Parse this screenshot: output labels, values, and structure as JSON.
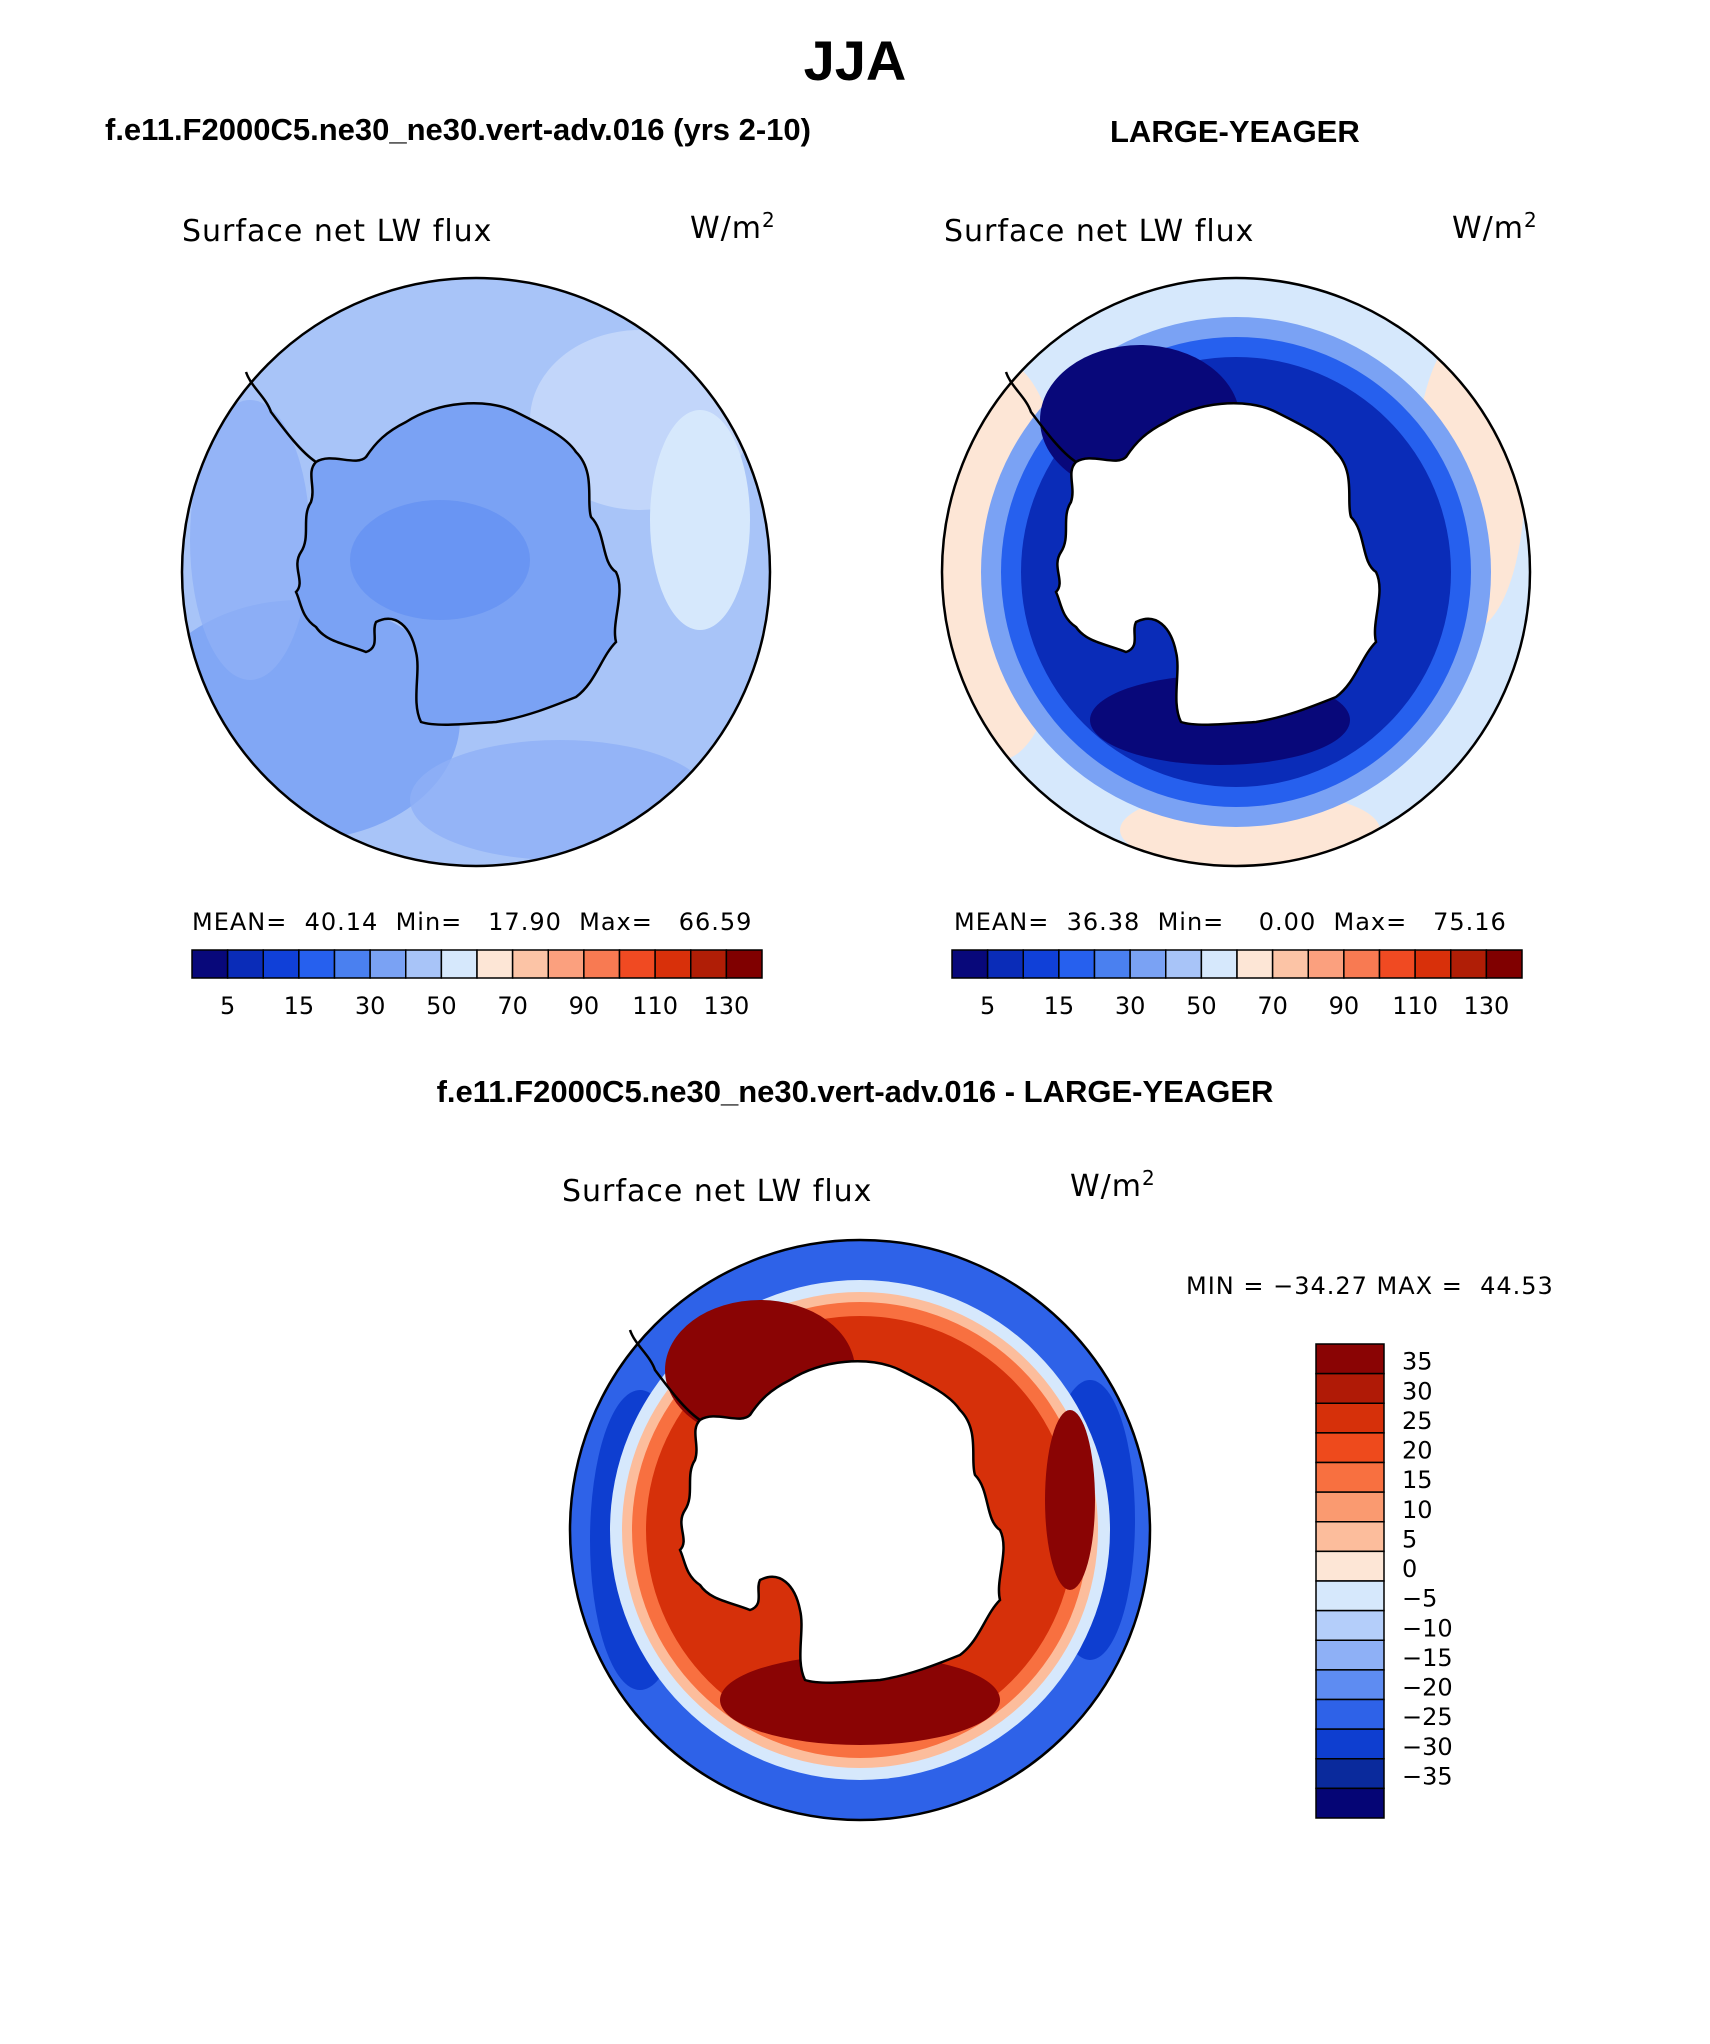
{
  "header": {
    "season": "JJA",
    "case_left": "f.e11.F2000C5.ne30_ne30.vert-adv.016 (yrs 2-10)",
    "case_right": "LARGE-YEAGER",
    "diff_title": "f.e11.F2000C5.ne30_ne30.vert-adv.016 - LARGE-YEAGER"
  },
  "panels": {
    "left": {
      "variable": "Surface net LW flux",
      "units": "W/m",
      "units_sup": "2",
      "stats": "MEAN=  40.14  Min=   17.90  Max=   66.59"
    },
    "right": {
      "variable": "Surface net LW flux",
      "units": "W/m",
      "units_sup": "2",
      "stats": "MEAN=  36.38  Min=    0.00  Max=   75.16"
    },
    "diff": {
      "variable": "Surface net LW flux",
      "units": "W/m",
      "units_sup": "2",
      "stats": "MIN = −34.27 MAX =  44.53"
    }
  },
  "colorbars": {
    "abs": {
      "labels": [
        "5",
        "15",
        "30",
        "50",
        "70",
        "90",
        "110",
        "130"
      ],
      "colors": [
        "#08087a",
        "#0a2cb8",
        "#1040d8",
        "#2660ee",
        "#4a80f0",
        "#7aa2f4",
        "#a8c4f8",
        "#d6e8fc",
        "#fde6d6",
        "#fcc4a6",
        "#fba07e",
        "#f87a52",
        "#f04a22",
        "#d8300a",
        "#b01e06",
        "#800000"
      ]
    },
    "diff": {
      "labels": [
        "35",
        "30",
        "25",
        "20",
        "15",
        "10",
        "5",
        "0",
        "−5",
        "−10",
        "−15",
        "−20",
        "−25",
        "−30",
        "−35"
      ],
      "colors": [
        "#8a0404",
        "#b01a06",
        "#d6300a",
        "#ee4a1c",
        "#f87040",
        "#fa9a70",
        "#fcbd9c",
        "#fde6d6",
        "#d6e8fc",
        "#b4cefa",
        "#8eb0f6",
        "#5e8cf2",
        "#2e62e8",
        "#0e3ed0",
        "#0a2a9c",
        "#050575"
      ]
    }
  },
  "chart_data": [
    {
      "type": "map",
      "title": "Surface net LW flux",
      "subtitle": "f.e11.F2000C5.ne30_ne30.vert-adv.016 (yrs 2-10)",
      "units": "W/m2",
      "projection": "south-polar-stereographic",
      "mean": 40.14,
      "min": 17.9,
      "max": 66.59,
      "contour_levels": [
        5,
        10,
        15,
        20,
        30,
        40,
        50,
        60,
        70,
        80,
        90,
        100,
        110,
        120,
        130
      ]
    },
    {
      "type": "map",
      "title": "Surface net LW flux",
      "subtitle": "LARGE-YEAGER",
      "units": "W/m2",
      "projection": "south-polar-stereographic",
      "mean": 36.38,
      "min": 0.0,
      "max": 75.16,
      "contour_levels": [
        5,
        10,
        15,
        20,
        30,
        40,
        50,
        60,
        70,
        80,
        90,
        100,
        110,
        120,
        130
      ]
    },
    {
      "type": "map",
      "title": "Surface net LW flux",
      "subtitle": "f.e11.F2000C5.ne30_ne30.vert-adv.016 - LARGE-YEAGER",
      "units": "W/m2",
      "projection": "south-polar-stereographic",
      "min": -34.27,
      "max": 44.53,
      "contour_levels": [
        -35,
        -30,
        -25,
        -20,
        -15,
        -10,
        -5,
        0,
        5,
        10,
        15,
        20,
        25,
        30,
        35
      ]
    }
  ]
}
